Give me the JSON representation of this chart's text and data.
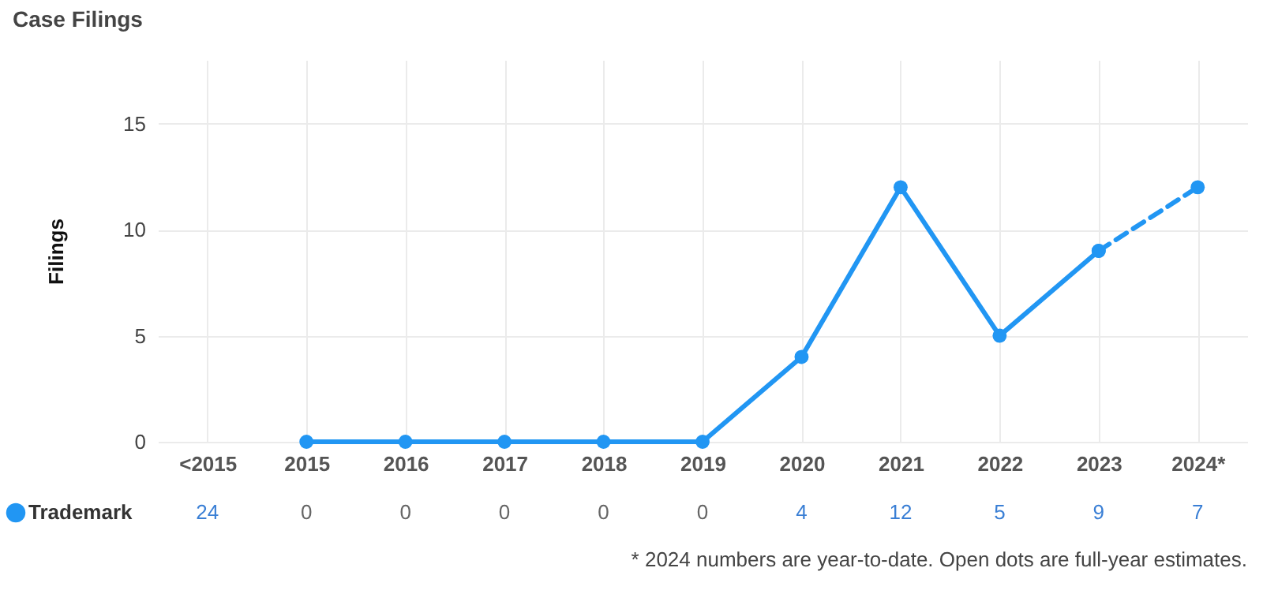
{
  "chart_data": {
    "type": "line",
    "title": "Case Filings",
    "ylabel": "Filings",
    "categories": [
      "<2015",
      "2015",
      "2016",
      "2017",
      "2018",
      "2019",
      "2020",
      "2021",
      "2022",
      "2023",
      "2024*"
    ],
    "series": [
      {
        "name": "Trademark",
        "color": "#2196f3",
        "values": [
          null,
          0,
          0,
          0,
          0,
          0,
          4,
          12,
          5,
          9,
          null
        ],
        "value_labels": [
          "24",
          "0",
          "0",
          "0",
          "0",
          "0",
          "4",
          "12",
          "5",
          "9",
          "7"
        ]
      },
      {
        "type": "line",
        "line_style": "dashed",
        "color": "#2196f3",
        "values": [
          null,
          null,
          null,
          null,
          null,
          null,
          null,
          null,
          null,
          9,
          12
        ]
      }
    ],
    "ylim": [
      0,
      18
    ],
    "yticks": [
      0,
      5,
      10,
      15
    ],
    "grid": true,
    "legend": "bottom left",
    "marker": "circle",
    "line_style": "solid",
    "annotations": [
      "* 2024 numbers are year-to-date. Open dots are full-year estimates."
    ]
  }
}
